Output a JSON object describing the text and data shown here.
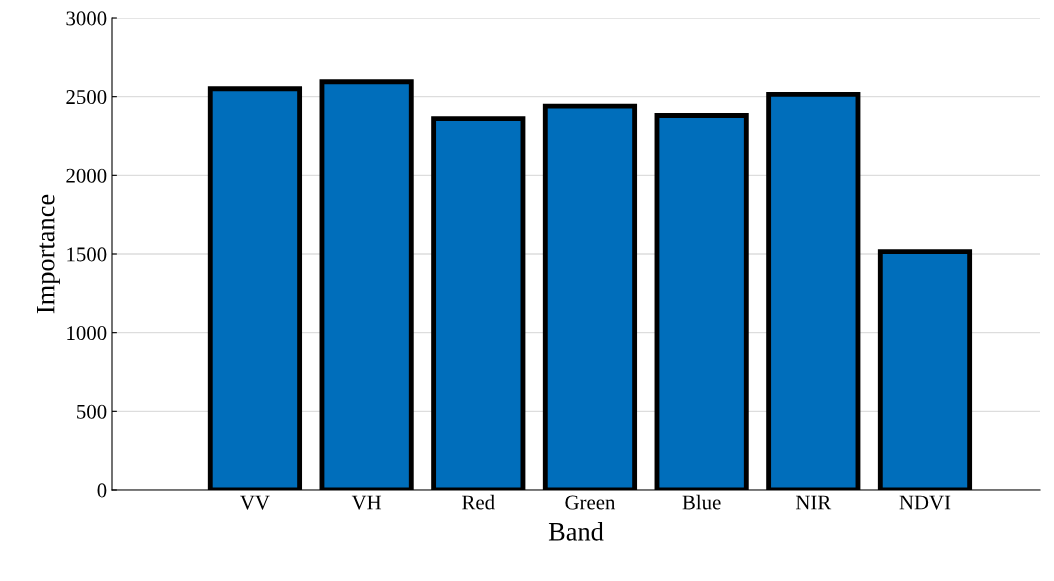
{
  "chart_data": {
    "type": "bar",
    "xlabel": "Band",
    "ylabel": "Importance",
    "categories": [
      "VV",
      "VH",
      "Red",
      "Green",
      "Blue",
      "NIR",
      "NDVI"
    ],
    "values": [
      2550,
      2595,
      2360,
      2440,
      2380,
      2515,
      1515
    ],
    "color": "#006ebb",
    "ylim": [
      0,
      3000
    ],
    "yticks": [
      0,
      500,
      1000,
      1500,
      2000,
      2500,
      3000
    ],
    "grid": "y"
  }
}
